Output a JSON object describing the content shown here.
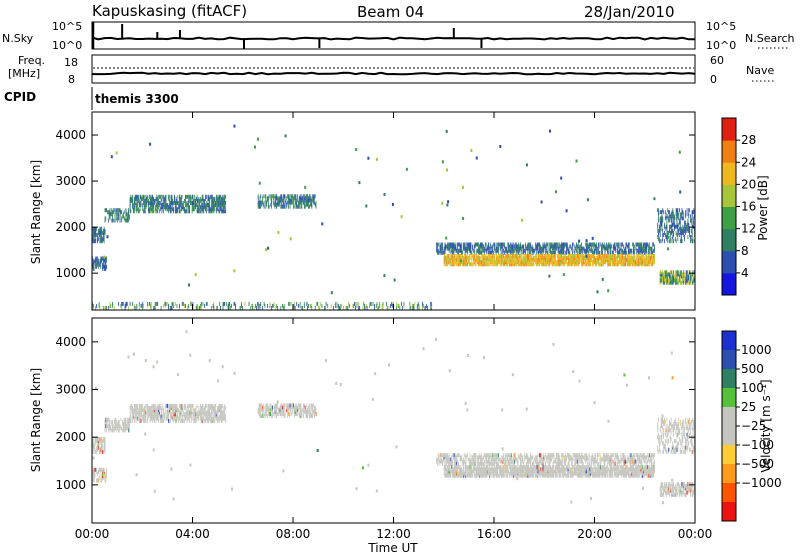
{
  "header": {
    "station": "Kapuskasing (fitACF)",
    "beam": "Beam 04",
    "date": "28/Jan/2010"
  },
  "strips": {
    "nsky_label": "N.Sky",
    "nsearch_label": "N.Search",
    "nsky_ticks": [
      "10^5",
      "10^0"
    ],
    "nsearch_ticks": [
      "10^5",
      "10^0"
    ],
    "freq_label_1": "Freq.",
    "freq_label_2": "[MHz]",
    "freq_ticks": [
      "18",
      "8"
    ],
    "nave_label": "Nave",
    "nave_ticks": [
      "60",
      "0"
    ],
    "cpid_label": "CPID",
    "cpid_value": "themis 3300"
  },
  "colors": {
    "power": [
      "#1515e0",
      "#2b4fb0",
      "#2f7f62",
      "#3f9f45",
      "#a7c63a",
      "#f0b81f",
      "#f07f14",
      "#e02010"
    ],
    "velocity": [
      "#ee1111",
      "#ff5500",
      "#ff9a1a",
      "#ffcc33",
      "#c6c6c0",
      "#c6c6c0",
      "#55c23a",
      "#2f7f62",
      "#2b4fb0",
      "#1c2fd0"
    ],
    "ground_scatter": "#c6c6c0"
  },
  "chart_data": [
    {
      "type": "heatmap",
      "name": "power",
      "ylabel": "Slant Range [km]",
      "yticks": [
        "1000",
        "2000",
        "3000",
        "4000"
      ],
      "ylim": [
        200,
        4500
      ],
      "xlim": [
        0,
        24
      ],
      "colorbar": {
        "label": "Power [dB]",
        "ticks": [
          "4",
          "8",
          "12",
          "16",
          "20",
          "24",
          "28"
        ],
        "range": [
          0,
          32
        ]
      },
      "bands": [
        {
          "t0": 0.0,
          "t1": 0.5,
          "r0": 1650,
          "r1": 1950,
          "v0": 4,
          "v1": 12,
          "density": 0.7
        },
        {
          "t0": 0.0,
          "t1": 0.6,
          "r0": 1050,
          "r1": 1300,
          "v0": 4,
          "v1": 10,
          "density": 0.6
        },
        {
          "t0": 0.5,
          "t1": 1.5,
          "r0": 2100,
          "r1": 2350,
          "v0": 6,
          "v1": 14,
          "density": 0.5
        },
        {
          "t0": 1.5,
          "t1": 5.3,
          "r0": 2300,
          "r1": 2650,
          "v0": 5,
          "v1": 14,
          "density": 0.6
        },
        {
          "t0": 6.6,
          "t1": 8.9,
          "r0": 2400,
          "r1": 2650,
          "v0": 5,
          "v1": 13,
          "density": 0.55
        },
        {
          "t0": 13.7,
          "t1": 22.4,
          "r0": 1400,
          "r1": 1600,
          "v0": 4,
          "v1": 12,
          "density": 0.55
        },
        {
          "t0": 14.0,
          "t1": 22.4,
          "r0": 1150,
          "r1": 1350,
          "v0": 18,
          "v1": 26,
          "density": 0.8
        },
        {
          "t0": 22.6,
          "t1": 24.0,
          "r0": 750,
          "r1": 1000,
          "v0": 4,
          "v1": 22,
          "density": 0.7
        },
        {
          "t0": 22.5,
          "t1": 24.0,
          "r0": 1650,
          "r1": 2350,
          "v0": 4,
          "v1": 12,
          "density": 0.35
        },
        {
          "t0": 0.0,
          "t1": 13.5,
          "r0": 200,
          "r1": 300,
          "v0": 4,
          "v1": 20,
          "density": 0.25
        }
      ]
    },
    {
      "type": "heatmap",
      "name": "velocity",
      "ylabel": "Slant Range [km]",
      "yticks": [
        "1000",
        "2000",
        "3000",
        "4000"
      ],
      "ylim": [
        200,
        4500
      ],
      "xlim": [
        0,
        24
      ],
      "xticks": [
        "00:00",
        "04:00",
        "08:00",
        "12:00",
        "16:00",
        "20:00",
        "00:00"
      ],
      "xlabel": "Time UT",
      "colorbar": {
        "label": "Velocity [m s⁻¹]",
        "ticks": [
          "1000",
          "500",
          "100",
          "25",
          "−25",
          "−100",
          "−500",
          "−1000"
        ]
      },
      "bands": [
        {
          "t0": 0.0,
          "t1": 0.5,
          "r0": 1650,
          "r1": 1950,
          "density": 0.6
        },
        {
          "t0": 0.0,
          "t1": 0.6,
          "r0": 1050,
          "r1": 1300,
          "density": 0.5
        },
        {
          "t0": 0.5,
          "t1": 1.5,
          "r0": 2100,
          "r1": 2350,
          "density": 0.5
        },
        {
          "t0": 1.5,
          "t1": 5.3,
          "r0": 2300,
          "r1": 2650,
          "density": 0.6
        },
        {
          "t0": 6.6,
          "t1": 8.9,
          "r0": 2400,
          "r1": 2650,
          "density": 0.55
        },
        {
          "t0": 13.7,
          "t1": 22.4,
          "r0": 1400,
          "r1": 1600,
          "density": 0.55
        },
        {
          "t0": 14.0,
          "t1": 22.4,
          "r0": 1150,
          "r1": 1350,
          "density": 0.8
        },
        {
          "t0": 22.6,
          "t1": 24.0,
          "r0": 750,
          "r1": 1000,
          "density": 0.6
        },
        {
          "t0": 22.5,
          "t1": 24.0,
          "r0": 1650,
          "r1": 2350,
          "density": 0.35
        }
      ]
    }
  ]
}
